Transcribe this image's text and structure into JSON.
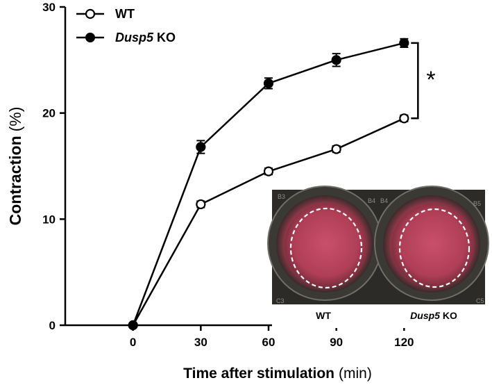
{
  "chart_data": {
    "type": "line",
    "title": "",
    "xlabel": "Time after stimulation",
    "xlabel_unit": "(min)",
    "ylabel": "Contraction",
    "ylabel_unit": "(%)",
    "x": [
      0,
      30,
      60,
      90,
      120
    ],
    "xlim": [
      -30,
      150
    ],
    "ylim": [
      0,
      30
    ],
    "xticks": [
      "0",
      "30",
      "60",
      "90",
      "120"
    ],
    "yticks": [
      "0",
      "10",
      "20",
      "30"
    ],
    "grid": false,
    "legend_position": "top-left",
    "series": [
      {
        "name": "WT",
        "marker": "open-circle",
        "values": [
          0,
          11.4,
          14.5,
          16.6,
          19.5
        ],
        "errors": [
          0,
          0.3,
          0.3,
          0.3,
          0.3
        ]
      },
      {
        "name": "Dusp5 KO",
        "name_italic": "Dusp5",
        "name_rest": " KO",
        "marker": "filled-circle",
        "values": [
          0,
          16.8,
          22.8,
          25.0,
          26.6
        ],
        "errors": [
          0,
          0.6,
          0.5,
          0.6,
          0.4
        ]
      }
    ],
    "significance": {
      "label": "*",
      "between": [
        "WT",
        "Dusp5 KO"
      ],
      "at_x": 120
    }
  },
  "inset": {
    "labels": [
      {
        "italic": "",
        "rest": "WT"
      },
      {
        "italic": "Dusp5",
        "rest": " KO"
      }
    ],
    "well_codes": [
      "B3",
      "B4",
      "B4",
      "B5",
      "C3",
      "C5"
    ]
  },
  "colors": {
    "line": "#000000",
    "well_pink": "#c2485f",
    "plate_dark": "#2b2a26"
  }
}
